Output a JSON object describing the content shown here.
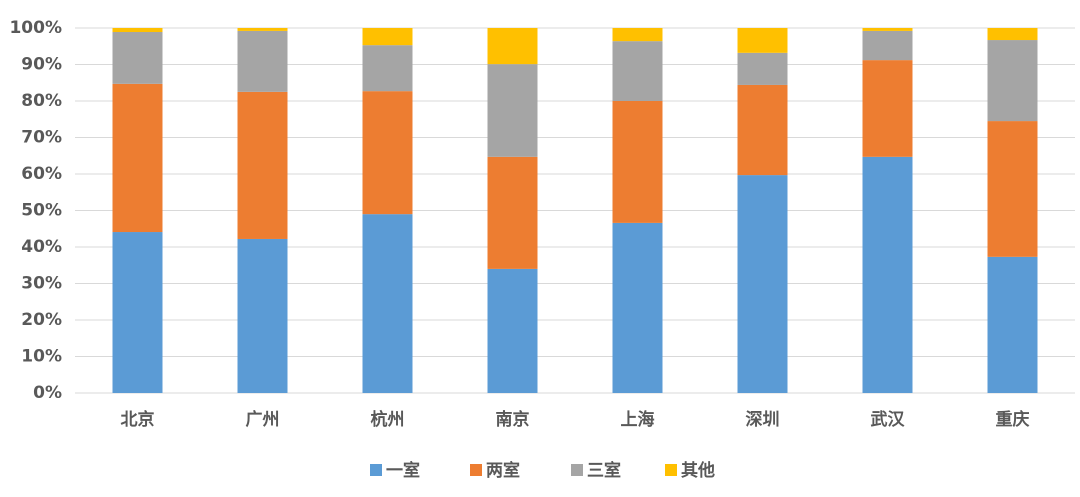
{
  "chart_data": {
    "type": "stacked-bar",
    "categories": [
      "北京",
      "广州",
      "杭州",
      "南京",
      "上海",
      "深圳",
      "武汉",
      "重庆"
    ],
    "series": [
      {
        "name": "一室",
        "color": "#5b9bd5",
        "values": [
          44.1,
          42.2,
          49.0,
          34.0,
          46.6,
          59.7,
          64.7,
          37.3
        ]
      },
      {
        "name": "两室",
        "color": "#ed7d31",
        "values": [
          40.6,
          40.3,
          33.7,
          30.7,
          33.4,
          24.7,
          26.5,
          37.2
        ]
      },
      {
        "name": "三室",
        "color": "#a5a5a5",
        "values": [
          14.2,
          16.7,
          12.6,
          25.4,
          16.4,
          8.8,
          8.0,
          22.2
        ]
      },
      {
        "name": "其他",
        "color": "#ffc000",
        "values": [
          1.1,
          0.8,
          4.7,
          9.9,
          3.6,
          6.8,
          0.8,
          3.3
        ]
      }
    ],
    "ylim": [
      0,
      100
    ],
    "yticks": [
      {
        "value": 0,
        "label": "0%"
      },
      {
        "value": 10,
        "label": "10%"
      },
      {
        "value": 20,
        "label": "20%"
      },
      {
        "value": 30,
        "label": "30%"
      },
      {
        "value": 40,
        "label": "40%"
      },
      {
        "value": 50,
        "label": "50%"
      },
      {
        "value": 60,
        "label": "60%"
      },
      {
        "value": 70,
        "label": "70%"
      },
      {
        "value": 80,
        "label": "80%"
      },
      {
        "value": 90,
        "label": "90%"
      },
      {
        "value": 100,
        "label": "100%"
      }
    ],
    "grid": true,
    "legend": "bottom"
  }
}
